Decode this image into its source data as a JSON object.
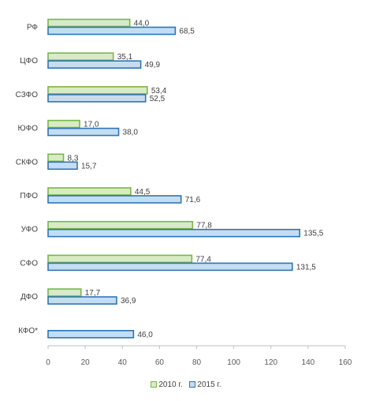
{
  "chart_data": {
    "type": "bar",
    "orientation": "horizontal",
    "categories": [
      "РФ",
      "ЦФО",
      "СЗФО",
      "ЮФО",
      "СКФО",
      "ПФО",
      "УФО",
      "СФО",
      "ДФО",
      "КФО*"
    ],
    "series": [
      {
        "name": "2010 г.",
        "values": [
          44.0,
          35.1,
          53.4,
          17.0,
          8.3,
          44.5,
          77.8,
          77.4,
          17.7,
          null
        ],
        "labels": [
          "44,0",
          "35,1",
          "53,4",
          "17,0",
          "8,3",
          "44,5",
          "77,8",
          "77,4",
          "17,7",
          ""
        ],
        "fill": "#d8ebc5",
        "stroke": "#7ab648"
      },
      {
        "name": "2015 г.",
        "values": [
          68.5,
          49.9,
          52.5,
          38.0,
          15.7,
          71.6,
          135.5,
          131.5,
          36.9,
          46.0
        ],
        "labels": [
          "68,5",
          "49,9",
          "52,5",
          "38,0",
          "15,7",
          "71,6",
          "135,5",
          "131,5",
          "36,9",
          "46,0"
        ],
        "fill": "#c5ddf2",
        "stroke": "#2e75b6"
      }
    ],
    "xlim": [
      0,
      160
    ],
    "xticks": [
      "0",
      "20",
      "40",
      "60",
      "80",
      "100",
      "120",
      "140",
      "160"
    ],
    "grid": false,
    "legend_position": "bottom"
  }
}
